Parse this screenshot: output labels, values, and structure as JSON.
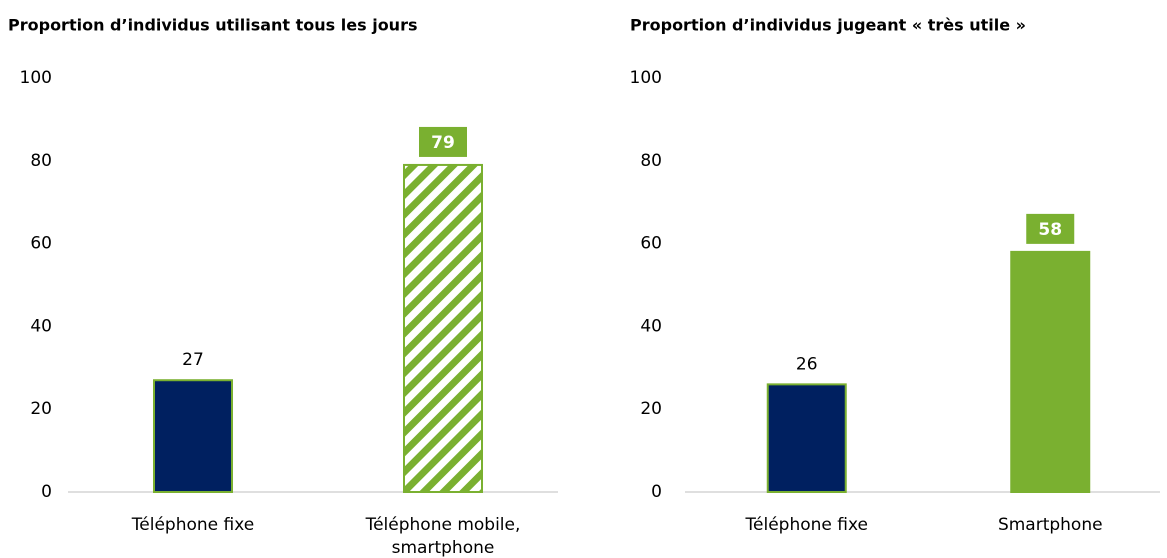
{
  "chart_data": [
    {
      "type": "bar",
      "title": "Proportion d’individus utilisant tous les jours",
      "categories": [
        "Téléphone fixe",
        "Téléphone mobile, smartphone"
      ],
      "values": [
        27,
        79
      ],
      "colors": [
        "#002060",
        "#7ab030"
      ],
      "patterns": [
        "solid",
        "hatched"
      ],
      "label_boxed": [
        false,
        true
      ],
      "ylim": [
        0,
        100
      ],
      "yticks": [
        0,
        20,
        40,
        60,
        80,
        100
      ],
      "grid": false
    },
    {
      "type": "bar",
      "title": "Proportion d’individus jugeant « très utile »",
      "categories": [
        "Téléphone fixe",
        "Smartphone"
      ],
      "values": [
        26,
        58
      ],
      "colors": [
        "#002060",
        "#7ab030"
      ],
      "patterns": [
        "solid",
        "solid"
      ],
      "label_boxed": [
        false,
        true
      ],
      "ylim": [
        0,
        100
      ],
      "yticks": [
        0,
        20,
        40,
        60,
        80,
        100
      ],
      "grid": false
    }
  ]
}
